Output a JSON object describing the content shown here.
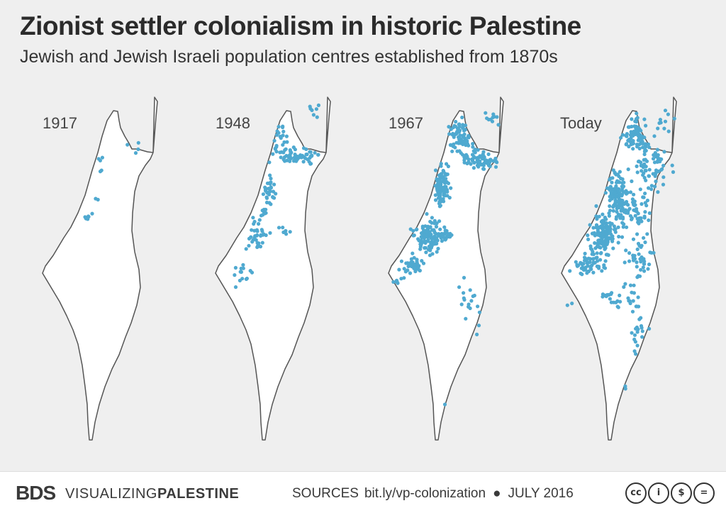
{
  "header": {
    "title": "Zionist settler colonialism in historic Palestine",
    "subtitle": "Jewish and Jewish Israeli population centres established from 1870s"
  },
  "colors": {
    "settlement_dot": "#4fa9d0",
    "territory_fill": "#ffffff",
    "territory_stroke": "#555555",
    "background": "#efefef"
  },
  "panels": [
    {
      "label": "1917",
      "density": "very sparse"
    },
    {
      "label": "1948",
      "density": "moderate"
    },
    {
      "label": "1967",
      "density": "dense"
    },
    {
      "label": "Today",
      "density": "very dense"
    }
  ],
  "footer": {
    "logo_bds": "BDS",
    "brand_light": "VISUALIZING",
    "brand_bold": "PALESTINE",
    "sources_label": "SOURCES",
    "sources_url": "bit.ly/vp-colonization",
    "separator": "●",
    "date": "JULY 2016",
    "license_icons": [
      "cc-icon",
      "by-icon",
      "nc-icon",
      "nd-icon"
    ]
  }
}
